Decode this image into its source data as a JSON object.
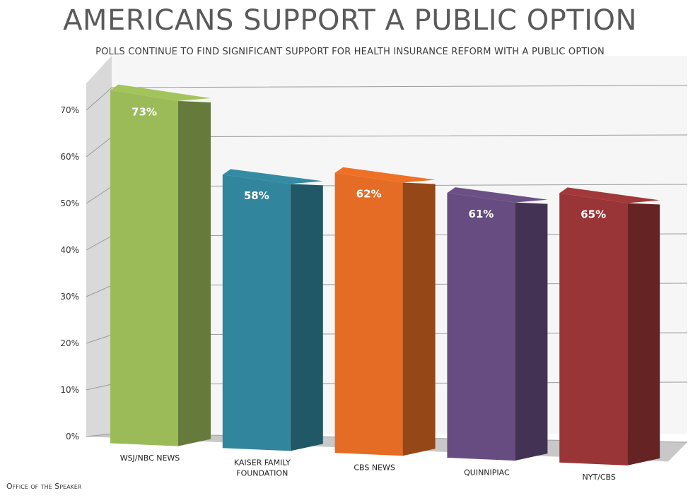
{
  "chart_data": {
    "type": "bar",
    "title": "AMERICANS SUPPORT A PUBLIC OPTION",
    "subtitle": "POLLS CONTINUE TO FIND SIGNIFICANT SUPPORT FOR HEALTH INSURANCE REFORM WITH A PUBLIC OPTION",
    "categories": [
      [
        "WSJ/NBC NEWS"
      ],
      [
        "KAISER FAMILY",
        "FOUNDATION"
      ],
      [
        "CBS NEWS"
      ],
      [
        "QUINNIPIAC"
      ],
      [
        "NYT/CBS"
      ]
    ],
    "values": [
      73,
      58,
      62,
      61,
      65
    ],
    "data_labels": [
      "73%",
      "58%",
      "62%",
      "61%",
      "65%"
    ],
    "colors": [
      "#9bbb59",
      "#31859c",
      "#e46c24",
      "#664c80",
      "#993537"
    ],
    "yticks": [
      "0%",
      "10%",
      "20%",
      "30%",
      "40%",
      "50%",
      "60%",
      "70%"
    ],
    "ylim": [
      0,
      70
    ],
    "xlabel": "",
    "ylabel": "",
    "grid": true,
    "legend": "none",
    "style": "3d-column"
  },
  "footer": "Office of the Speaker"
}
